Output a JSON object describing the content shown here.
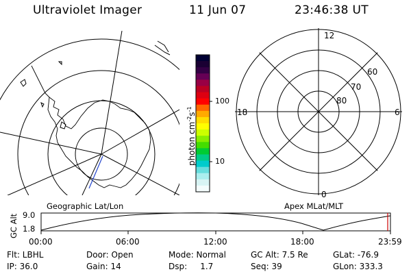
{
  "header": {
    "instrument": "Ultraviolet Imager",
    "date": "11 Jun 07",
    "time": "23:46:38 UT"
  },
  "colorbar": {
    "label_main": "photon cm",
    "label_sup1": "-2",
    "label_mid": "s",
    "label_sup2": "-1",
    "ticks": [
      "100",
      "10"
    ],
    "colors": [
      "#000033",
      "#1a0033",
      "#330044",
      "#660055",
      "#990044",
      "#bb0022",
      "#dd0011",
      "#ff0000",
      "#ff6600",
      "#ffaa00",
      "#ffdd00",
      "#ffff00",
      "#ccff00",
      "#88ee00",
      "#44dd00",
      "#00cc33",
      "#00cc88",
      "#00cccc",
      "#66dddd",
      "#aaeeee",
      "#d8f4f4",
      "#f4fcfc"
    ]
  },
  "left_map": {
    "caption": "Geographic Lat/Lon"
  },
  "right_map": {
    "caption": "Apex MLat/MLT",
    "mlt_labels": {
      "top": "12",
      "left": "18",
      "right": "6",
      "bottom": "0"
    },
    "lat_labels": [
      "60",
      "70",
      "80"
    ]
  },
  "altitude_plot": {
    "ylabel": "GC Alt",
    "y_ticks": [
      "9.0",
      "1.8"
    ],
    "x_ticks": [
      "00:00",
      "06:00",
      "12:00",
      "18:00",
      "23:59"
    ]
  },
  "status": {
    "filter": "Flt: LBHL",
    "ip": "IP: 36.0",
    "door": "Door: Open",
    "gain": "Gain: 14",
    "mode": "Mode: Normal",
    "dsp": "Dsp:     1.7",
    "gc_alt": "GC Alt: 7.5 Re",
    "seq": "Seq: 39",
    "glat": "GLat: -76.9",
    "glon": "GLon: 333.3"
  }
}
